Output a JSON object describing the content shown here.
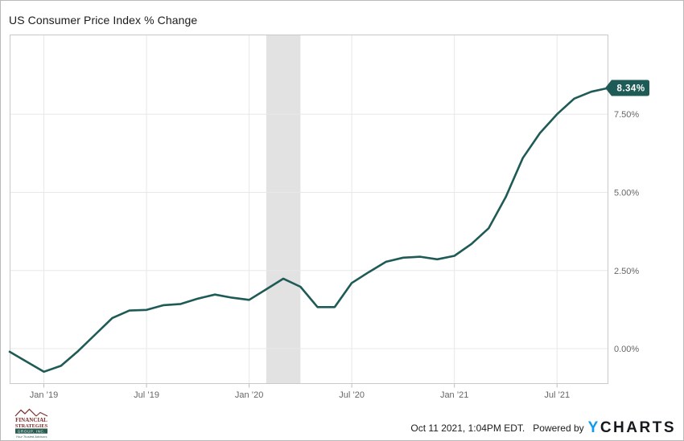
{
  "title": "US Consumer Price Index % Change",
  "chart_data": {
    "type": "line",
    "title": "US Consumer Price Index % Change",
    "ylabel": "",
    "xlabel": "",
    "ylim": [
      -1.13,
      10.05
    ],
    "grid": true,
    "legend": "none",
    "y_ticks": [
      {
        "value": 0.0,
        "label": "0.00%"
      },
      {
        "value": 2.5,
        "label": "2.50%"
      },
      {
        "value": 5.0,
        "label": "5.00%"
      },
      {
        "value": 7.5,
        "label": "7.50%"
      }
    ],
    "x_ticks": [
      {
        "index": 2,
        "label": "Jan ’19"
      },
      {
        "index": 8,
        "label": "Jul ’19"
      },
      {
        "index": 14,
        "label": "Jan ’20"
      },
      {
        "index": 20,
        "label": "Jul ’20"
      },
      {
        "index": 26,
        "label": "Jan ’21"
      },
      {
        "index": 32,
        "label": "Jul ’21"
      }
    ],
    "recession_band": {
      "from_index": 15,
      "to_index": 17,
      "color": "#e2e2e2"
    },
    "series": [
      {
        "name": "US Consumer Price Index % Change",
        "points": [
          {
            "date": "Nov ’18",
            "value": -0.1
          },
          {
            "date": "Dec ’18",
            "value": -0.42
          },
          {
            "date": "Jan ’19",
            "value": -0.74
          },
          {
            "date": "Feb ’19",
            "value": -0.55
          },
          {
            "date": "Mar ’19",
            "value": -0.08
          },
          {
            "date": "Apr ’19",
            "value": 0.45
          },
          {
            "date": "May ’19",
            "value": 0.98
          },
          {
            "date": "Jun ’19",
            "value": 1.22
          },
          {
            "date": "Jul ’19",
            "value": 1.24
          },
          {
            "date": "Aug ’19",
            "value": 1.39
          },
          {
            "date": "Sep ’19",
            "value": 1.43
          },
          {
            "date": "Oct ’19",
            "value": 1.6
          },
          {
            "date": "Nov ’19",
            "value": 1.73
          },
          {
            "date": "Dec ’19",
            "value": 1.63
          },
          {
            "date": "Jan ’20",
            "value": 1.56
          },
          {
            "date": "Feb ’20",
            "value": 1.9
          },
          {
            "date": "Mar ’20",
            "value": 2.24
          },
          {
            "date": "Apr ’20",
            "value": 1.98
          },
          {
            "date": "May ’20",
            "value": 1.33
          },
          {
            "date": "Jun ’20",
            "value": 1.33
          },
          {
            "date": "Jul ’20",
            "value": 2.1
          },
          {
            "date": "Aug ’20",
            "value": 2.45
          },
          {
            "date": "Sep ’20",
            "value": 2.78
          },
          {
            "date": "Oct ’20",
            "value": 2.91
          },
          {
            "date": "Nov ’20",
            "value": 2.94
          },
          {
            "date": "Dec ’20",
            "value": 2.86
          },
          {
            "date": "Jan ’21",
            "value": 2.97
          },
          {
            "date": "Feb ’21",
            "value": 3.35
          },
          {
            "date": "Mar ’21",
            "value": 3.85
          },
          {
            "date": "Apr ’21",
            "value": 4.85
          },
          {
            "date": "May ’21",
            "value": 6.1
          },
          {
            "date": "Jun ’21",
            "value": 6.9
          },
          {
            "date": "Jul ’21",
            "value": 7.5
          },
          {
            "date": "Aug ’21",
            "value": 8.0
          },
          {
            "date": "Sep ’21",
            "value": 8.22
          },
          {
            "date": "Oct ’21",
            "value": 8.34
          }
        ]
      }
    ],
    "last_value": {
      "value": 8.34,
      "label": "8.34%"
    }
  },
  "colors": {
    "line": "#1f5b56",
    "badge": "#1f5b56",
    "badge_text": "#ffffff",
    "recession_band": "#e2e2e2",
    "grid": "#e8e8e8",
    "plot_border": "#c9c9c9",
    "tick_mark": "#bdbdbd",
    "axis_text": "#666666",
    "title_text": "#1b1b1b",
    "ycharts_blue": "#0f9af0",
    "brand_dark": "#16191d",
    "logo_maroon": "#7c2b29",
    "logo_green": "#2a5c50"
  },
  "footer": {
    "timestamp": "Oct 11 2021, 1:04PM EDT.",
    "powered_by": "Powered by",
    "brand_y": "Y",
    "brand_charts": "CHARTS"
  },
  "logo": {
    "line1": "FINANCIAL",
    "line2": "STRATEGIES",
    "line3": "GROUP, INC.",
    "tagline": "Your Trusted Advisors"
  }
}
